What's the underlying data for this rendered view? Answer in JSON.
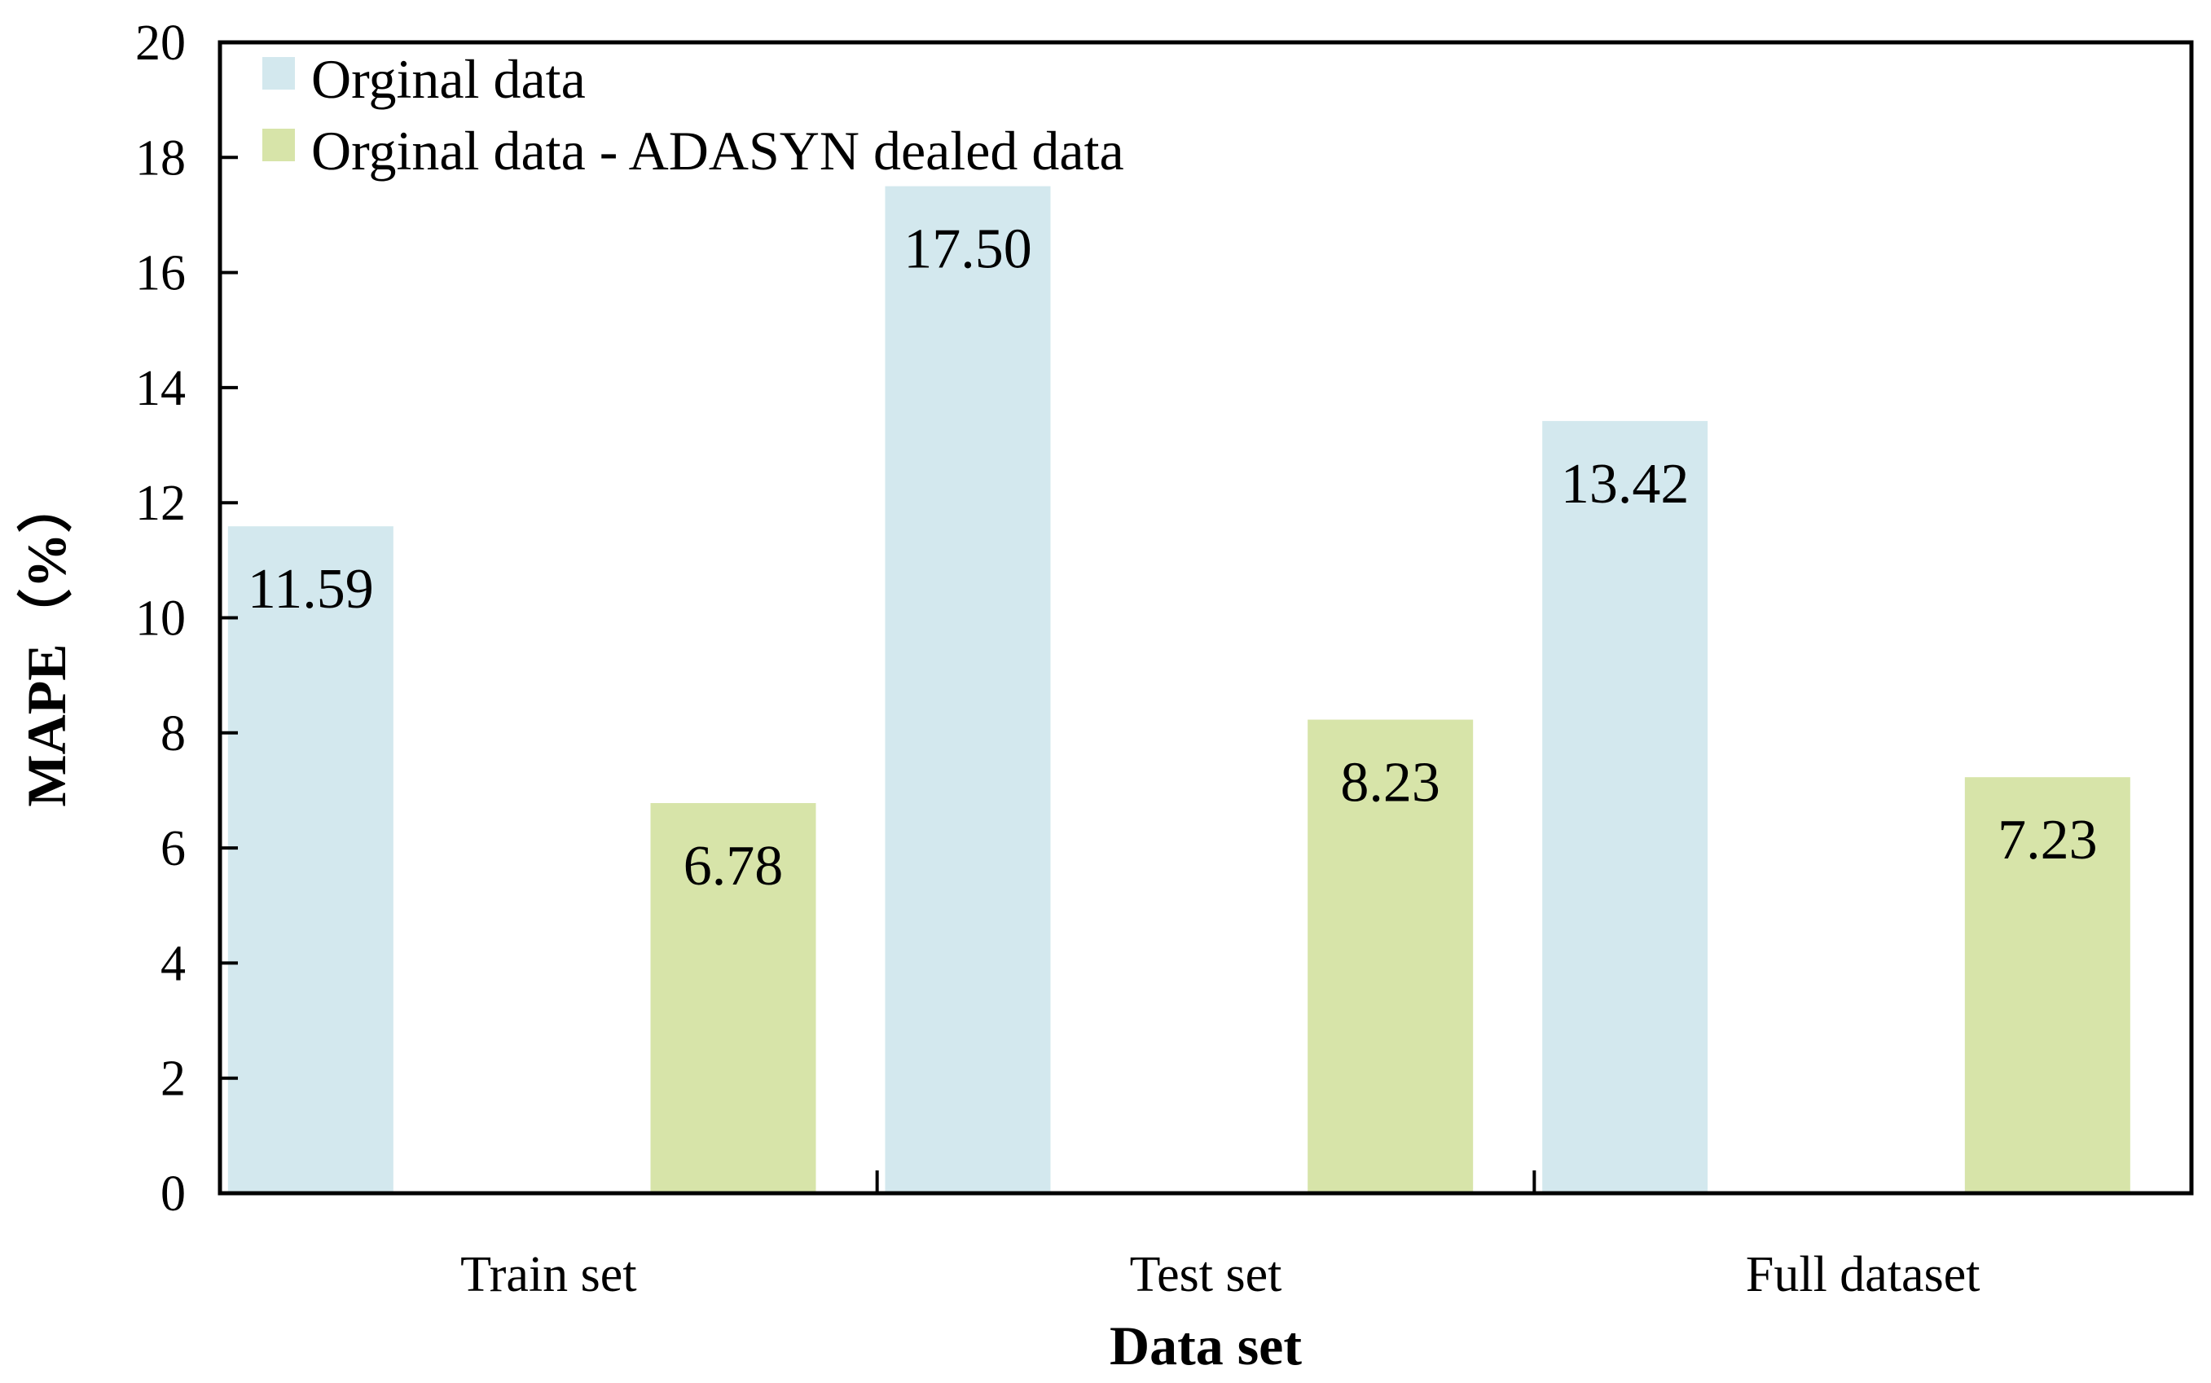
{
  "chart_data": {
    "type": "bar",
    "title": "",
    "xlabel": "Data set",
    "ylabel": "MAPE（%）",
    "ylim": [
      0,
      20
    ],
    "yticks": [
      0,
      2,
      4,
      6,
      8,
      10,
      12,
      14,
      16,
      18,
      20
    ],
    "categories": [
      "Train set",
      "Test set",
      "Full dataset"
    ],
    "series": [
      {
        "name": "Orginal data",
        "color": "#d3e8ee",
        "values": [
          11.59,
          17.5,
          13.42
        ],
        "labels": [
          "11.59",
          "17.50",
          "13.42"
        ]
      },
      {
        "name": "Orginal data - ADASYN dealed data",
        "color": "#d7e4a9",
        "values": [
          6.78,
          8.23,
          7.23
        ],
        "labels": [
          "6.78",
          "8.23",
          "7.23"
        ]
      }
    ],
    "legend": "top-left",
    "grid": false
  }
}
